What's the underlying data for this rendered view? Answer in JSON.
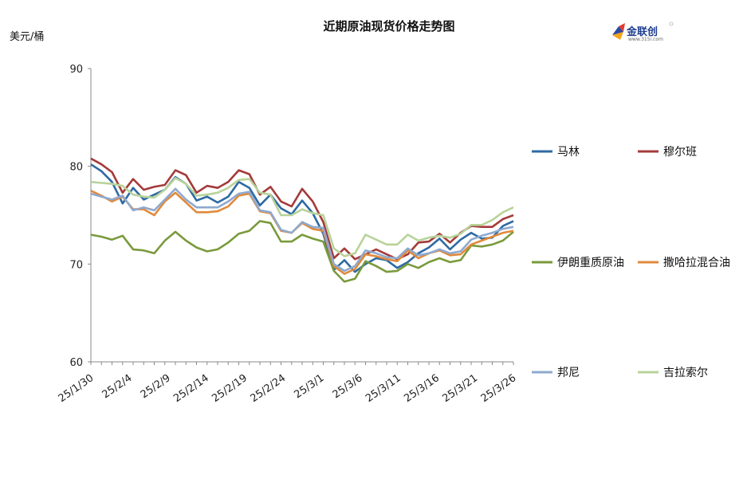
{
  "chart_data": {
    "type": "line",
    "title": "近期原油现货价格走势图",
    "ylabel": "美元/桶",
    "ylim": [
      60,
      90
    ],
    "yticks": [
      60,
      70,
      80,
      90
    ],
    "x_tick_labels": [
      "25/1/30",
      "25/2/4",
      "25/2/9",
      "25/2/14",
      "25/2/19",
      "25/2/24",
      "25/3/1",
      "25/3/6",
      "25/3/11",
      "25/3/16",
      "25/3/21",
      "25/3/26"
    ],
    "x_tick_index": [
      0,
      4,
      8,
      12,
      16,
      20,
      24,
      28,
      32,
      36,
      40,
      44
    ],
    "grid": false,
    "legend": "right",
    "x": [
      "25/1/30",
      "25/1/31",
      "25/2/3",
      "25/2/4",
      "25/2/5",
      "25/2/6",
      "25/2/7",
      "25/2/10",
      "25/2/11",
      "25/2/12",
      "25/2/13",
      "25/2/14",
      "25/2/17",
      "25/2/18",
      "25/2/19",
      "25/2/20",
      "25/2/21",
      "25/2/24",
      "25/2/25",
      "25/2/26",
      "25/2/27",
      "25/2/28",
      "25/3/3",
      "25/3/4",
      "25/3/5",
      "25/3/6",
      "25/3/7",
      "25/3/10",
      "25/3/11",
      "25/3/12",
      "25/3/13",
      "25/3/14",
      "25/3/17",
      "25/3/18",
      "25/3/19",
      "25/3/20",
      "25/3/21",
      "25/3/24",
      "25/3/25",
      "25/3/26",
      "25/3/27"
    ],
    "series": [
      {
        "name": "马林",
        "color": "#2e6aa3",
        "values": [
          80.2,
          79.5,
          78.4,
          76.2,
          77.8,
          76.6,
          77.1,
          77.6,
          78.9,
          78.2,
          76.5,
          76.9,
          76.3,
          76.9,
          78.4,
          77.8,
          76.0,
          77.1,
          75.7,
          75.1,
          76.5,
          75.2,
          73.1,
          69.4,
          70.4,
          69.2,
          70.0,
          70.6,
          70.4,
          69.6,
          70.2,
          71.1,
          71.7,
          72.6,
          71.5,
          72.5,
          73.2,
          72.6,
          72.7,
          73.9,
          74.4
        ]
      },
      {
        "name": "穆尔班",
        "color": "#a53a3a",
        "values": [
          80.8,
          80.2,
          79.4,
          77.3,
          78.7,
          77.6,
          77.9,
          78.1,
          79.6,
          79.1,
          77.3,
          78.0,
          77.8,
          78.4,
          79.6,
          79.2,
          77.1,
          77.9,
          76.4,
          75.9,
          77.7,
          76.4,
          74.3,
          70.6,
          71.6,
          70.5,
          71.0,
          71.5,
          71.0,
          70.5,
          71.0,
          72.2,
          72.3,
          73.1,
          72.2,
          73.2,
          73.9,
          73.8,
          73.8,
          74.6,
          75.0
        ]
      },
      {
        "name": "伊朗重质原油",
        "color": "#7a9a3c",
        "values": [
          73.0,
          72.8,
          72.5,
          72.9,
          71.5,
          71.4,
          71.1,
          72.4,
          73.3,
          72.4,
          71.7,
          71.3,
          71.5,
          72.2,
          73.1,
          73.4,
          74.4,
          74.2,
          72.3,
          72.3,
          73.0,
          72.6,
          72.3,
          69.3,
          68.2,
          68.5,
          70.3,
          69.8,
          69.2,
          69.3,
          70.0,
          69.6,
          70.2,
          70.6,
          70.2,
          70.4,
          71.9,
          71.8,
          72.0,
          72.4,
          73.3
        ]
      },
      {
        "name": "撒哈拉混合油",
        "color": "#e08a3c",
        "values": [
          77.5,
          77.0,
          76.4,
          76.9,
          75.6,
          75.6,
          75.0,
          76.4,
          77.3,
          76.3,
          75.3,
          75.3,
          75.4,
          75.9,
          77.0,
          77.2,
          75.4,
          75.2,
          73.4,
          73.2,
          74.2,
          73.6,
          73.4,
          69.8,
          69.0,
          69.5,
          71.0,
          70.8,
          70.5,
          70.3,
          71.4,
          70.6,
          71.1,
          71.4,
          70.9,
          71.0,
          72.0,
          72.4,
          72.8,
          73.2,
          73.4
        ]
      },
      {
        "name": "邦尼",
        "color": "#8fa9cf",
        "values": [
          77.2,
          76.9,
          76.6,
          77.0,
          75.5,
          75.8,
          75.5,
          76.6,
          77.7,
          76.6,
          75.8,
          75.8,
          75.8,
          76.4,
          77.2,
          77.4,
          75.5,
          75.3,
          73.5,
          73.2,
          74.3,
          73.8,
          73.7,
          70.0,
          69.3,
          69.8,
          71.4,
          71.1,
          70.7,
          70.6,
          71.6,
          70.9,
          71.1,
          71.5,
          71.1,
          71.3,
          72.5,
          72.9,
          73.2,
          73.6,
          73.8
        ]
      },
      {
        "name": "吉拉索尔",
        "color": "#b8d39a",
        "values": [
          78.4,
          78.3,
          78.2,
          78.0,
          77.1,
          76.9,
          76.8,
          77.6,
          78.8,
          78.2,
          77.0,
          77.1,
          77.3,
          77.8,
          78.6,
          78.7,
          77.3,
          77.1,
          75.0,
          75.0,
          75.6,
          75.2,
          75.0,
          71.6,
          70.8,
          71.1,
          73.0,
          72.5,
          72.0,
          72.0,
          73.0,
          72.4,
          72.7,
          72.9,
          72.7,
          73.1,
          74.0,
          74.0,
          74.5,
          75.3,
          75.8
        ]
      }
    ]
  }
}
